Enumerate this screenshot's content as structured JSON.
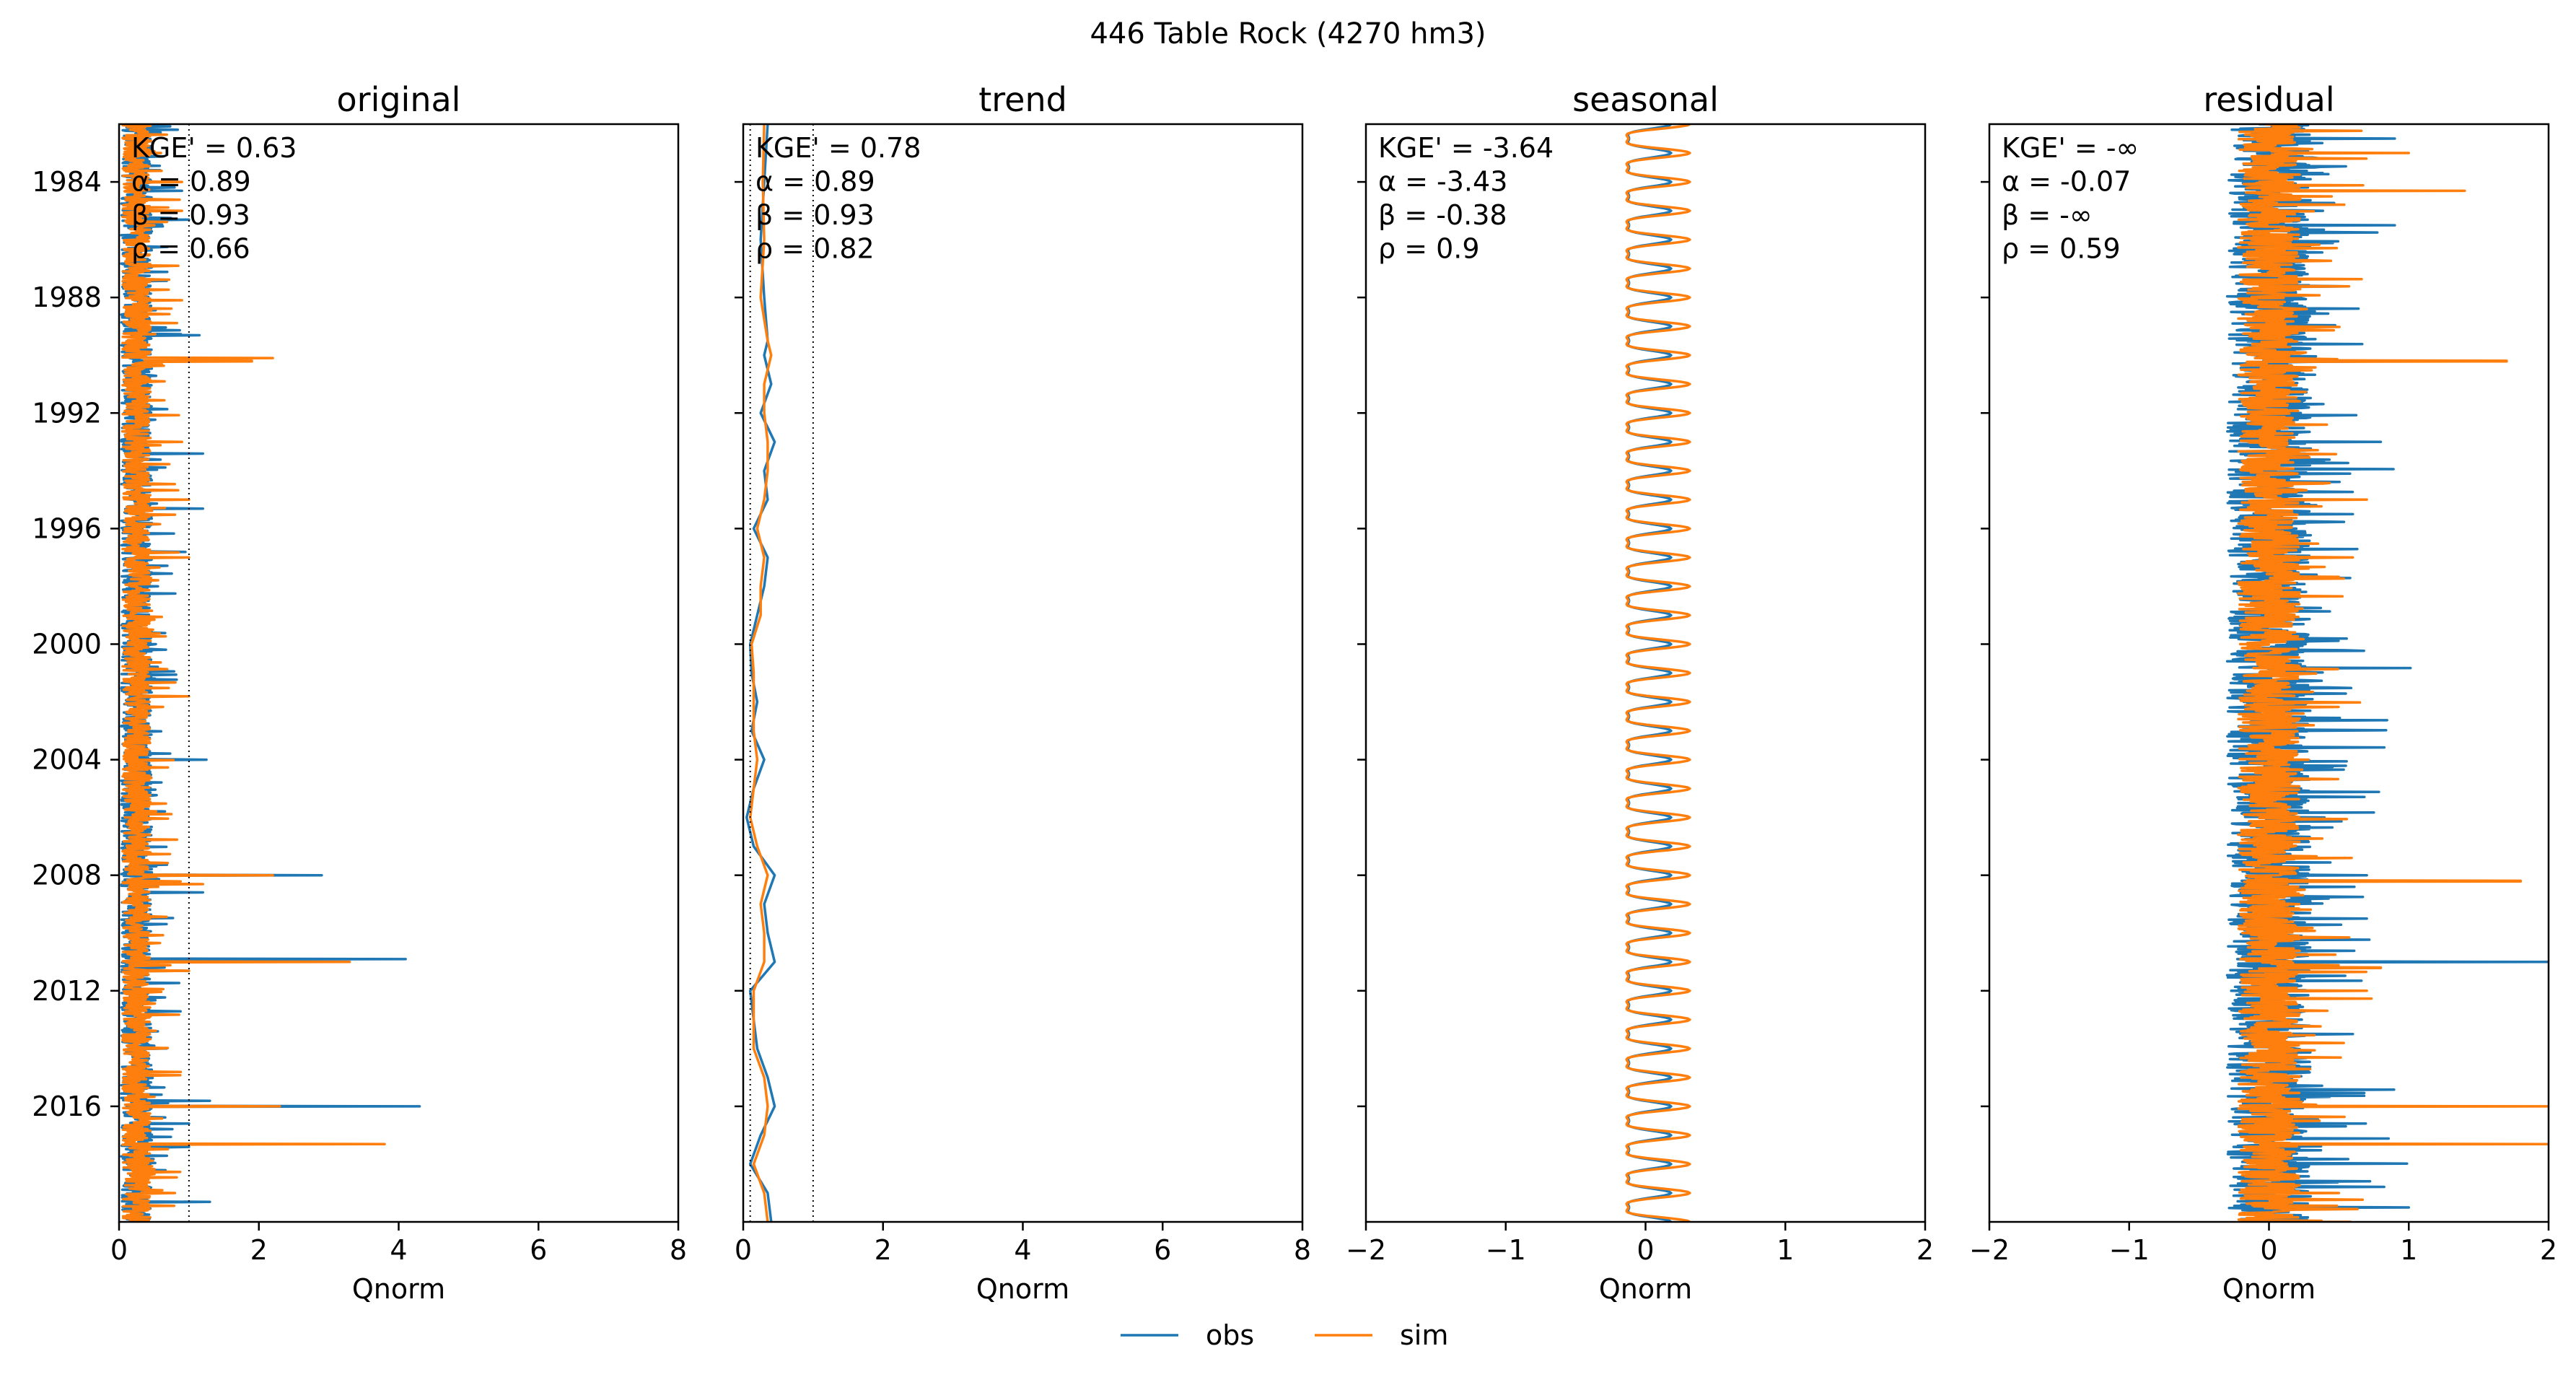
{
  "figure": {
    "suptitle": "446  Table Rock (4270 hm3)"
  },
  "colors": {
    "obs": "#1f77b4",
    "sim": "#ff7f0e",
    "axis": "#000000",
    "reference_line": "#000000"
  },
  "legend": {
    "placement": "bottom-center",
    "entries": [
      {
        "name": "obs",
        "color": "#1f77b4"
      },
      {
        "name": "sim",
        "color": "#ff7f0e"
      }
    ]
  },
  "chart_data": [
    {
      "type": "line",
      "orientation": "vertical-time",
      "title": "original",
      "xlabel": "Qnorm",
      "ylabel": "",
      "xlim": [
        0,
        8
      ],
      "xticks": [
        0,
        2,
        4,
        6,
        8
      ],
      "ylim": [
        1982.0,
        2020.0
      ],
      "yticks": [
        1984,
        1988,
        1992,
        1996,
        2000,
        2004,
        2008,
        2012,
        2016
      ],
      "reference_lines": [
        1.0
      ],
      "stats": [
        "KGE' = 0.63",
        "α = 0.89",
        "β = 0.93",
        "ρ = 0.66"
      ],
      "series": [
        {
          "name": "obs",
          "base": 0.25,
          "noise": 0.22,
          "floor": 0.0,
          "peaks": [
            [
              1984.3,
              0.9
            ],
            [
              1985.3,
              1.0
            ],
            [
              1989.3,
              1.15
            ],
            [
              1990.2,
              1.1
            ],
            [
              1993.4,
              1.2
            ],
            [
              1995.3,
              1.2
            ],
            [
              1996.8,
              0.95
            ],
            [
              2004.0,
              1.25
            ],
            [
              2008.0,
              2.9
            ],
            [
              2008.6,
              1.2
            ],
            [
              2010.9,
              4.1
            ],
            [
              2011.3,
              1.0
            ],
            [
              2015.8,
              1.3
            ],
            [
              2016.0,
              4.3
            ],
            [
              2016.6,
              1.0
            ],
            [
              2017.4,
              1.0
            ],
            [
              2019.3,
              1.3
            ]
          ]
        },
        {
          "name": "sim",
          "base": 0.25,
          "noise": 0.2,
          "floor": 0.0,
          "peaks": [
            [
              1983.0,
              0.6
            ],
            [
              1984.0,
              0.9
            ],
            [
              1985.0,
              0.9
            ],
            [
              1988.1,
              0.9
            ],
            [
              1990.1,
              2.2
            ],
            [
              1990.2,
              1.9
            ],
            [
              1993.0,
              0.9
            ],
            [
              1995.0,
              1.0
            ],
            [
              1997.0,
              1.0
            ],
            [
              2001.8,
              1.0
            ],
            [
              2008.0,
              2.2
            ],
            [
              2008.3,
              1.2
            ],
            [
              2011.0,
              3.3
            ],
            [
              2011.3,
              1.0
            ],
            [
              2016.0,
              2.3
            ],
            [
              2017.3,
              3.8
            ],
            [
              2019.0,
              0.8
            ]
          ]
        }
      ]
    },
    {
      "type": "line",
      "orientation": "vertical-time",
      "title": "trend",
      "xlabel": "Qnorm",
      "ylabel": "",
      "xlim": [
        0,
        8
      ],
      "xticks": [
        0,
        2,
        4,
        6,
        8
      ],
      "ylim": [
        1982.0,
        2020.0
      ],
      "yticks": [
        1984,
        1988,
        1992,
        1996,
        2000,
        2004,
        2008,
        2012,
        2016
      ],
      "reference_lines": [
        0.1,
        1.0
      ],
      "stats": [
        "KGE' = 0.78",
        "α = 0.89",
        "β = 0.93",
        "ρ = 0.82"
      ],
      "series": [
        {
          "name": "obs",
          "smooth": [
            [
              1982.0,
              0.35
            ],
            [
              1984.0,
              0.3
            ],
            [
              1986.0,
              0.25
            ],
            [
              1988.0,
              0.3
            ],
            [
              1989.5,
              0.35
            ],
            [
              1990.0,
              0.3
            ],
            [
              1991.0,
              0.4
            ],
            [
              1992.0,
              0.25
            ],
            [
              1993.0,
              0.45
            ],
            [
              1994.0,
              0.3
            ],
            [
              1995.0,
              0.35
            ],
            [
              1996.0,
              0.15
            ],
            [
              1997.0,
              0.35
            ],
            [
              1998.0,
              0.3
            ],
            [
              1999.0,
              0.2
            ],
            [
              2000.0,
              0.1
            ],
            [
              2001.0,
              0.12
            ],
            [
              2002.0,
              0.2
            ],
            [
              2003.0,
              0.12
            ],
            [
              2004.0,
              0.3
            ],
            [
              2005.0,
              0.15
            ],
            [
              2006.0,
              0.05
            ],
            [
              2007.0,
              0.15
            ],
            [
              2008.0,
              0.45
            ],
            [
              2009.0,
              0.3
            ],
            [
              2010.0,
              0.35
            ],
            [
              2011.0,
              0.45
            ],
            [
              2012.0,
              0.1
            ],
            [
              2013.0,
              0.15
            ],
            [
              2014.0,
              0.2
            ],
            [
              2015.0,
              0.35
            ],
            [
              2016.0,
              0.45
            ],
            [
              2017.0,
              0.25
            ],
            [
              2018.0,
              0.1
            ],
            [
              2019.0,
              0.35
            ],
            [
              2020.0,
              0.4
            ]
          ]
        },
        {
          "name": "sim",
          "smooth": [
            [
              1982.0,
              0.3
            ],
            [
              1984.0,
              0.28
            ],
            [
              1986.0,
              0.3
            ],
            [
              1988.0,
              0.25
            ],
            [
              1989.5,
              0.35
            ],
            [
              1990.0,
              0.4
            ],
            [
              1991.0,
              0.3
            ],
            [
              1992.0,
              0.3
            ],
            [
              1993.0,
              0.35
            ],
            [
              1994.0,
              0.35
            ],
            [
              1995.0,
              0.3
            ],
            [
              1996.0,
              0.2
            ],
            [
              1997.0,
              0.3
            ],
            [
              1998.0,
              0.25
            ],
            [
              1999.0,
              0.25
            ],
            [
              2000.0,
              0.12
            ],
            [
              2001.0,
              0.15
            ],
            [
              2002.0,
              0.15
            ],
            [
              2003.0,
              0.15
            ],
            [
              2004.0,
              0.2
            ],
            [
              2005.0,
              0.15
            ],
            [
              2006.0,
              0.1
            ],
            [
              2007.0,
              0.2
            ],
            [
              2008.0,
              0.35
            ],
            [
              2009.0,
              0.25
            ],
            [
              2010.0,
              0.3
            ],
            [
              2011.0,
              0.3
            ],
            [
              2012.0,
              0.15
            ],
            [
              2013.0,
              0.15
            ],
            [
              2014.0,
              0.15
            ],
            [
              2015.0,
              0.3
            ],
            [
              2016.0,
              0.35
            ],
            [
              2017.0,
              0.3
            ],
            [
              2018.0,
              0.15
            ],
            [
              2019.0,
              0.3
            ],
            [
              2020.0,
              0.35
            ]
          ]
        }
      ]
    },
    {
      "type": "line",
      "orientation": "vertical-time",
      "title": "seasonal",
      "xlabel": "Qnorm",
      "ylabel": "",
      "xlim": [
        -2,
        2
      ],
      "xticks": [
        -2,
        -1,
        0,
        1,
        2
      ],
      "ylim": [
        1982.0,
        2020.0
      ],
      "yticks": [
        1984,
        1988,
        1992,
        1996,
        2000,
        2004,
        2008,
        2012,
        2016
      ],
      "reference_lines": [],
      "stats": [
        "KGE' = -3.64",
        "α = -3.43",
        "β = -0.38",
        "ρ = 0.9"
      ],
      "series": [
        {
          "name": "obs",
          "seasonal": {
            "amp": 0.15,
            "offset": -0.02
          }
        },
        {
          "name": "sim",
          "seasonal": {
            "amp": 0.22,
            "offset": 0.02
          }
        }
      ]
    },
    {
      "type": "line",
      "orientation": "vertical-time",
      "title": "residual",
      "xlabel": "Qnorm",
      "ylabel": "",
      "xlim": [
        -2,
        2
      ],
      "xticks": [
        -2,
        -1,
        0,
        1,
        2
      ],
      "ylim": [
        1982.0,
        2020.0
      ],
      "yticks": [
        1984,
        1988,
        1992,
        1996,
        2000,
        2004,
        2008,
        2012,
        2016
      ],
      "reference_lines": [],
      "stats": [
        "KGE' = -∞",
        "α = -0.07",
        "β = -∞",
        "ρ = 0.59"
      ],
      "series": [
        {
          "name": "obs",
          "base": 0.0,
          "noise": 0.3,
          "floor": -0.6,
          "peaks": [
            [
              1982.5,
              0.9
            ],
            [
              1985.5,
              0.9
            ],
            [
              1990.2,
              0.7
            ],
            [
              1993.0,
              0.8
            ],
            [
              1995.5,
              0.6
            ],
            [
              2008.0,
              0.7
            ],
            [
              2009.5,
              0.7
            ],
            [
              2011.0,
              2.0
            ],
            [
              2013.5,
              0.6
            ],
            [
              2016.0,
              0.5
            ],
            [
              2019.5,
              1.0
            ]
          ]
        },
        {
          "name": "sim",
          "base": 0.0,
          "noise": 0.22,
          "floor": -0.5,
          "peaks": [
            [
              1983.0,
              1.0
            ],
            [
              1984.3,
              1.4
            ],
            [
              1990.2,
              1.7
            ],
            [
              1995.0,
              0.7
            ],
            [
              1997.0,
              0.6
            ],
            [
              2008.2,
              1.8
            ],
            [
              2011.2,
              0.8
            ],
            [
              2012.0,
              0.7
            ],
            [
              2016.0,
              2.0
            ],
            [
              2017.3,
              2.0
            ],
            [
              2019.0,
              0.5
            ]
          ]
        }
      ]
    }
  ]
}
